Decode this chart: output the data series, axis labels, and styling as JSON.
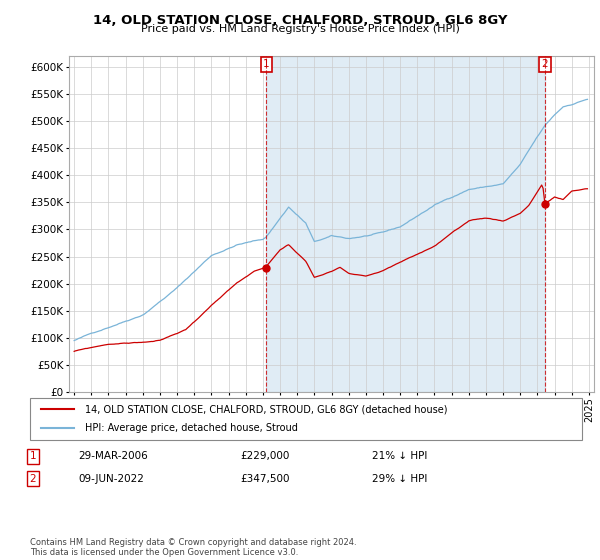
{
  "title": "14, OLD STATION CLOSE, CHALFORD, STROUD, GL6 8GY",
  "subtitle": "Price paid vs. HM Land Registry's House Price Index (HPI)",
  "ylabel_ticks": [
    "£0",
    "£50K",
    "£100K",
    "£150K",
    "£200K",
    "£250K",
    "£300K",
    "£350K",
    "£400K",
    "£450K",
    "£500K",
    "£550K",
    "£600K"
  ],
  "ylim": [
    0,
    620000
  ],
  "ytick_values": [
    0,
    50000,
    100000,
    150000,
    200000,
    250000,
    300000,
    350000,
    400000,
    450000,
    500000,
    550000,
    600000
  ],
  "hpi_color": "#7ab4d8",
  "hpi_fill_color": "#d6e9f5",
  "price_color": "#cc0000",
  "background_color": "#ffffff",
  "grid_color": "#cccccc",
  "transaction1_date": "29-MAR-2006",
  "transaction1_price": 229000,
  "transaction1_pct": "21% ↓ HPI",
  "transaction2_date": "09-JUN-2022",
  "transaction2_price": 347500,
  "transaction2_pct": "29% ↓ HPI",
  "footer_text": "Contains HM Land Registry data © Crown copyright and database right 2024.\nThis data is licensed under the Open Government Licence v3.0.",
  "legend_label_red": "14, OLD STATION CLOSE, CHALFORD, STROUD, GL6 8GY (detached house)",
  "legend_label_blue": "HPI: Average price, detached house, Stroud",
  "t1_year": 2006.21,
  "t2_year": 2022.44,
  "xlim_start": 1994.7,
  "xlim_end": 2025.3
}
